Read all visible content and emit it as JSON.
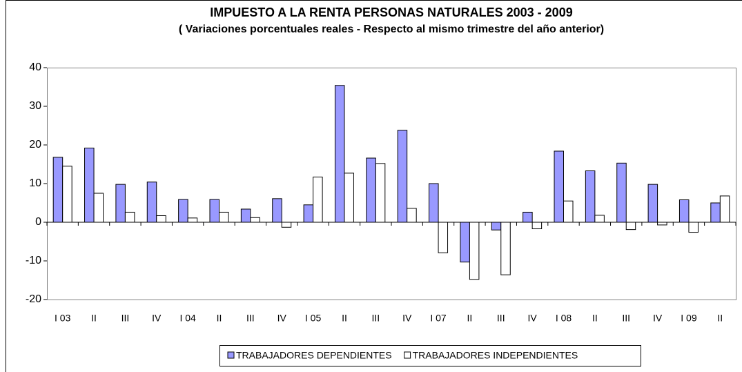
{
  "chart_data": {
    "type": "bar",
    "title": "IMPUESTO A LA RENTA  PERSONAS NATURALES  2003 - 2009",
    "subtitle": "( Variaciones porcentuales reales - Respecto al mismo trimestre del año anterior)",
    "categories": [
      "I 03",
      "II",
      "III",
      "IV",
      "I 04",
      "II",
      "III",
      "IV",
      "I 05",
      "II",
      "III",
      "IV",
      "I 07",
      "II",
      "III",
      "IV",
      "I 08",
      "II",
      "III",
      "IV",
      "I 09",
      "II"
    ],
    "series": [
      {
        "name": "TRABAJADORES DEPENDIENTES",
        "color": "#9999ff",
        "values": [
          16.8,
          19.2,
          9.8,
          10.4,
          5.9,
          5.9,
          3.4,
          6.1,
          4.5,
          35.4,
          16.6,
          23.8,
          10.0,
          -10.3,
          -2.0,
          2.6,
          18.4,
          13.3,
          15.3,
          9.8,
          5.8,
          5.0
        ]
      },
      {
        "name": "TRABAJADORES INDEPENDIENTES",
        "color": "#ffffff",
        "values": [
          14.5,
          7.5,
          2.6,
          1.7,
          1.1,
          2.6,
          1.2,
          -1.3,
          11.7,
          12.7,
          15.2,
          3.6,
          -7.9,
          -14.8,
          -13.6,
          -1.7,
          5.5,
          1.8,
          -1.9,
          -0.7,
          -2.6,
          6.8
        ]
      }
    ],
    "ylim": [
      -20,
      40
    ],
    "yticks": [
      -20,
      -10,
      0,
      10,
      20,
      30,
      40
    ],
    "legend": "bottom"
  }
}
